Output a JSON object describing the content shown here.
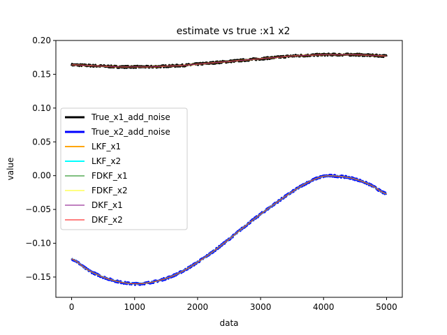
{
  "chart_data": {
    "type": "line",
    "title": "estimate vs true :x1 x2",
    "xlabel": "data",
    "ylabel": "value",
    "xlim": [
      -250,
      5250
    ],
    "ylim": [
      -0.18,
      0.2
    ],
    "xticks": [
      0,
      1000,
      2000,
      3000,
      4000,
      5000
    ],
    "yticks": [
      -0.15,
      -0.1,
      -0.05,
      0.0,
      0.05,
      0.1,
      0.15,
      0.2
    ],
    "xtick_labels": [
      "0",
      "1000",
      "2000",
      "3000",
      "4000",
      "5000"
    ],
    "ytick_labels": [
      "−0.15",
      "−0.10",
      "−0.05",
      "0.00",
      "0.05",
      "0.10",
      "0.15",
      "0.20"
    ],
    "grid": false,
    "legend_position": "center-left",
    "x": [
      0,
      250,
      500,
      750,
      1000,
      1250,
      1500,
      1750,
      2000,
      2250,
      2500,
      2750,
      3000,
      3250,
      3500,
      3750,
      4000,
      4250,
      4500,
      4750,
      5000
    ],
    "x1_values": [
      0.164,
      0.163,
      0.162,
      0.161,
      0.161,
      0.161,
      0.162,
      0.163,
      0.165,
      0.167,
      0.169,
      0.171,
      0.173,
      0.175,
      0.177,
      0.178,
      0.179,
      0.179,
      0.179,
      0.178,
      0.177
    ],
    "x2_values": [
      -0.123,
      -0.139,
      -0.15,
      -0.157,
      -0.16,
      -0.158,
      -0.152,
      -0.142,
      -0.128,
      -0.112,
      -0.094,
      -0.075,
      -0.057,
      -0.04,
      -0.024,
      -0.01,
      -0.001,
      -0.001,
      -0.005,
      -0.014,
      -0.027
    ],
    "series": [
      {
        "name": "True_x1_add_noise",
        "color": "#000000",
        "width": 3,
        "data": "x1",
        "noise": 0.0016
      },
      {
        "name": "True_x2_add_noise",
        "color": "#0000ff",
        "width": 3,
        "data": "x2",
        "noise": 0.0016
      },
      {
        "name": "LKF_x1",
        "color": "#ffa500",
        "width": 2,
        "data": "x1",
        "noise": 0
      },
      {
        "name": "LKF_x2",
        "color": "#00ffff",
        "width": 2,
        "data": "x2",
        "noise": 0
      },
      {
        "name": "FDKF_x1",
        "color": "#008000",
        "width": 1,
        "data": "x1",
        "noise": 0
      },
      {
        "name": "FDKF_x2",
        "color": "#ffff00",
        "width": 1,
        "data": "x2",
        "noise": 0
      },
      {
        "name": "DKF_x1",
        "color": "#800080",
        "width": 1,
        "data": "x1",
        "noise": 0
      },
      {
        "name": "DKF_x2",
        "color": "#ff0000",
        "width": 1,
        "data": "x2",
        "noise": 0
      }
    ]
  }
}
